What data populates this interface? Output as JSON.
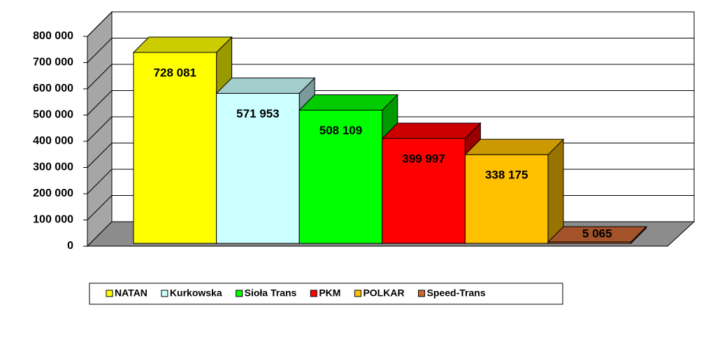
{
  "chart_data": {
    "type": "bar3d",
    "series": [
      {
        "name": "NATAN",
        "color": "#ffff00",
        "values": [
          728081
        ],
        "value_labels": [
          "728 081"
        ]
      },
      {
        "name": "Kurkowska",
        "color": "#ccffff",
        "values": [
          571953
        ],
        "value_labels": [
          "571 953"
        ]
      },
      {
        "name": "Sioła Trans",
        "color": "#00ff00",
        "values": [
          508109
        ],
        "value_labels": [
          "508 109"
        ]
      },
      {
        "name": "PKM",
        "color": "#ff0000",
        "values": [
          399997
        ],
        "value_labels": [
          "399 997"
        ]
      },
      {
        "name": "POLKAR",
        "color": "#ffc000",
        "values": [
          338175
        ],
        "value_labels": [
          "338 175"
        ]
      },
      {
        "name": "Speed-Trans",
        "color": "#cc6633",
        "values": [
          5065
        ],
        "value_labels": [
          "5 065"
        ]
      }
    ],
    "ylim": [
      0,
      800000
    ],
    "yticks": [
      0,
      {
        "value": 100000,
        "label": "100 000"
      },
      {
        "value": 200000,
        "label": "200 000"
      },
      {
        "value": 300000,
        "label": "300 000"
      },
      {
        "value": 400000,
        "label": "400 000"
      },
      {
        "value": 500000,
        "label": "500 000"
      },
      {
        "value": 600000,
        "label": "600 000"
      },
      {
        "value": 700000,
        "label": "700 000"
      },
      {
        "value": 800000,
        "label": "800 000"
      }
    ],
    "grid": true,
    "legend": "bottom"
  }
}
